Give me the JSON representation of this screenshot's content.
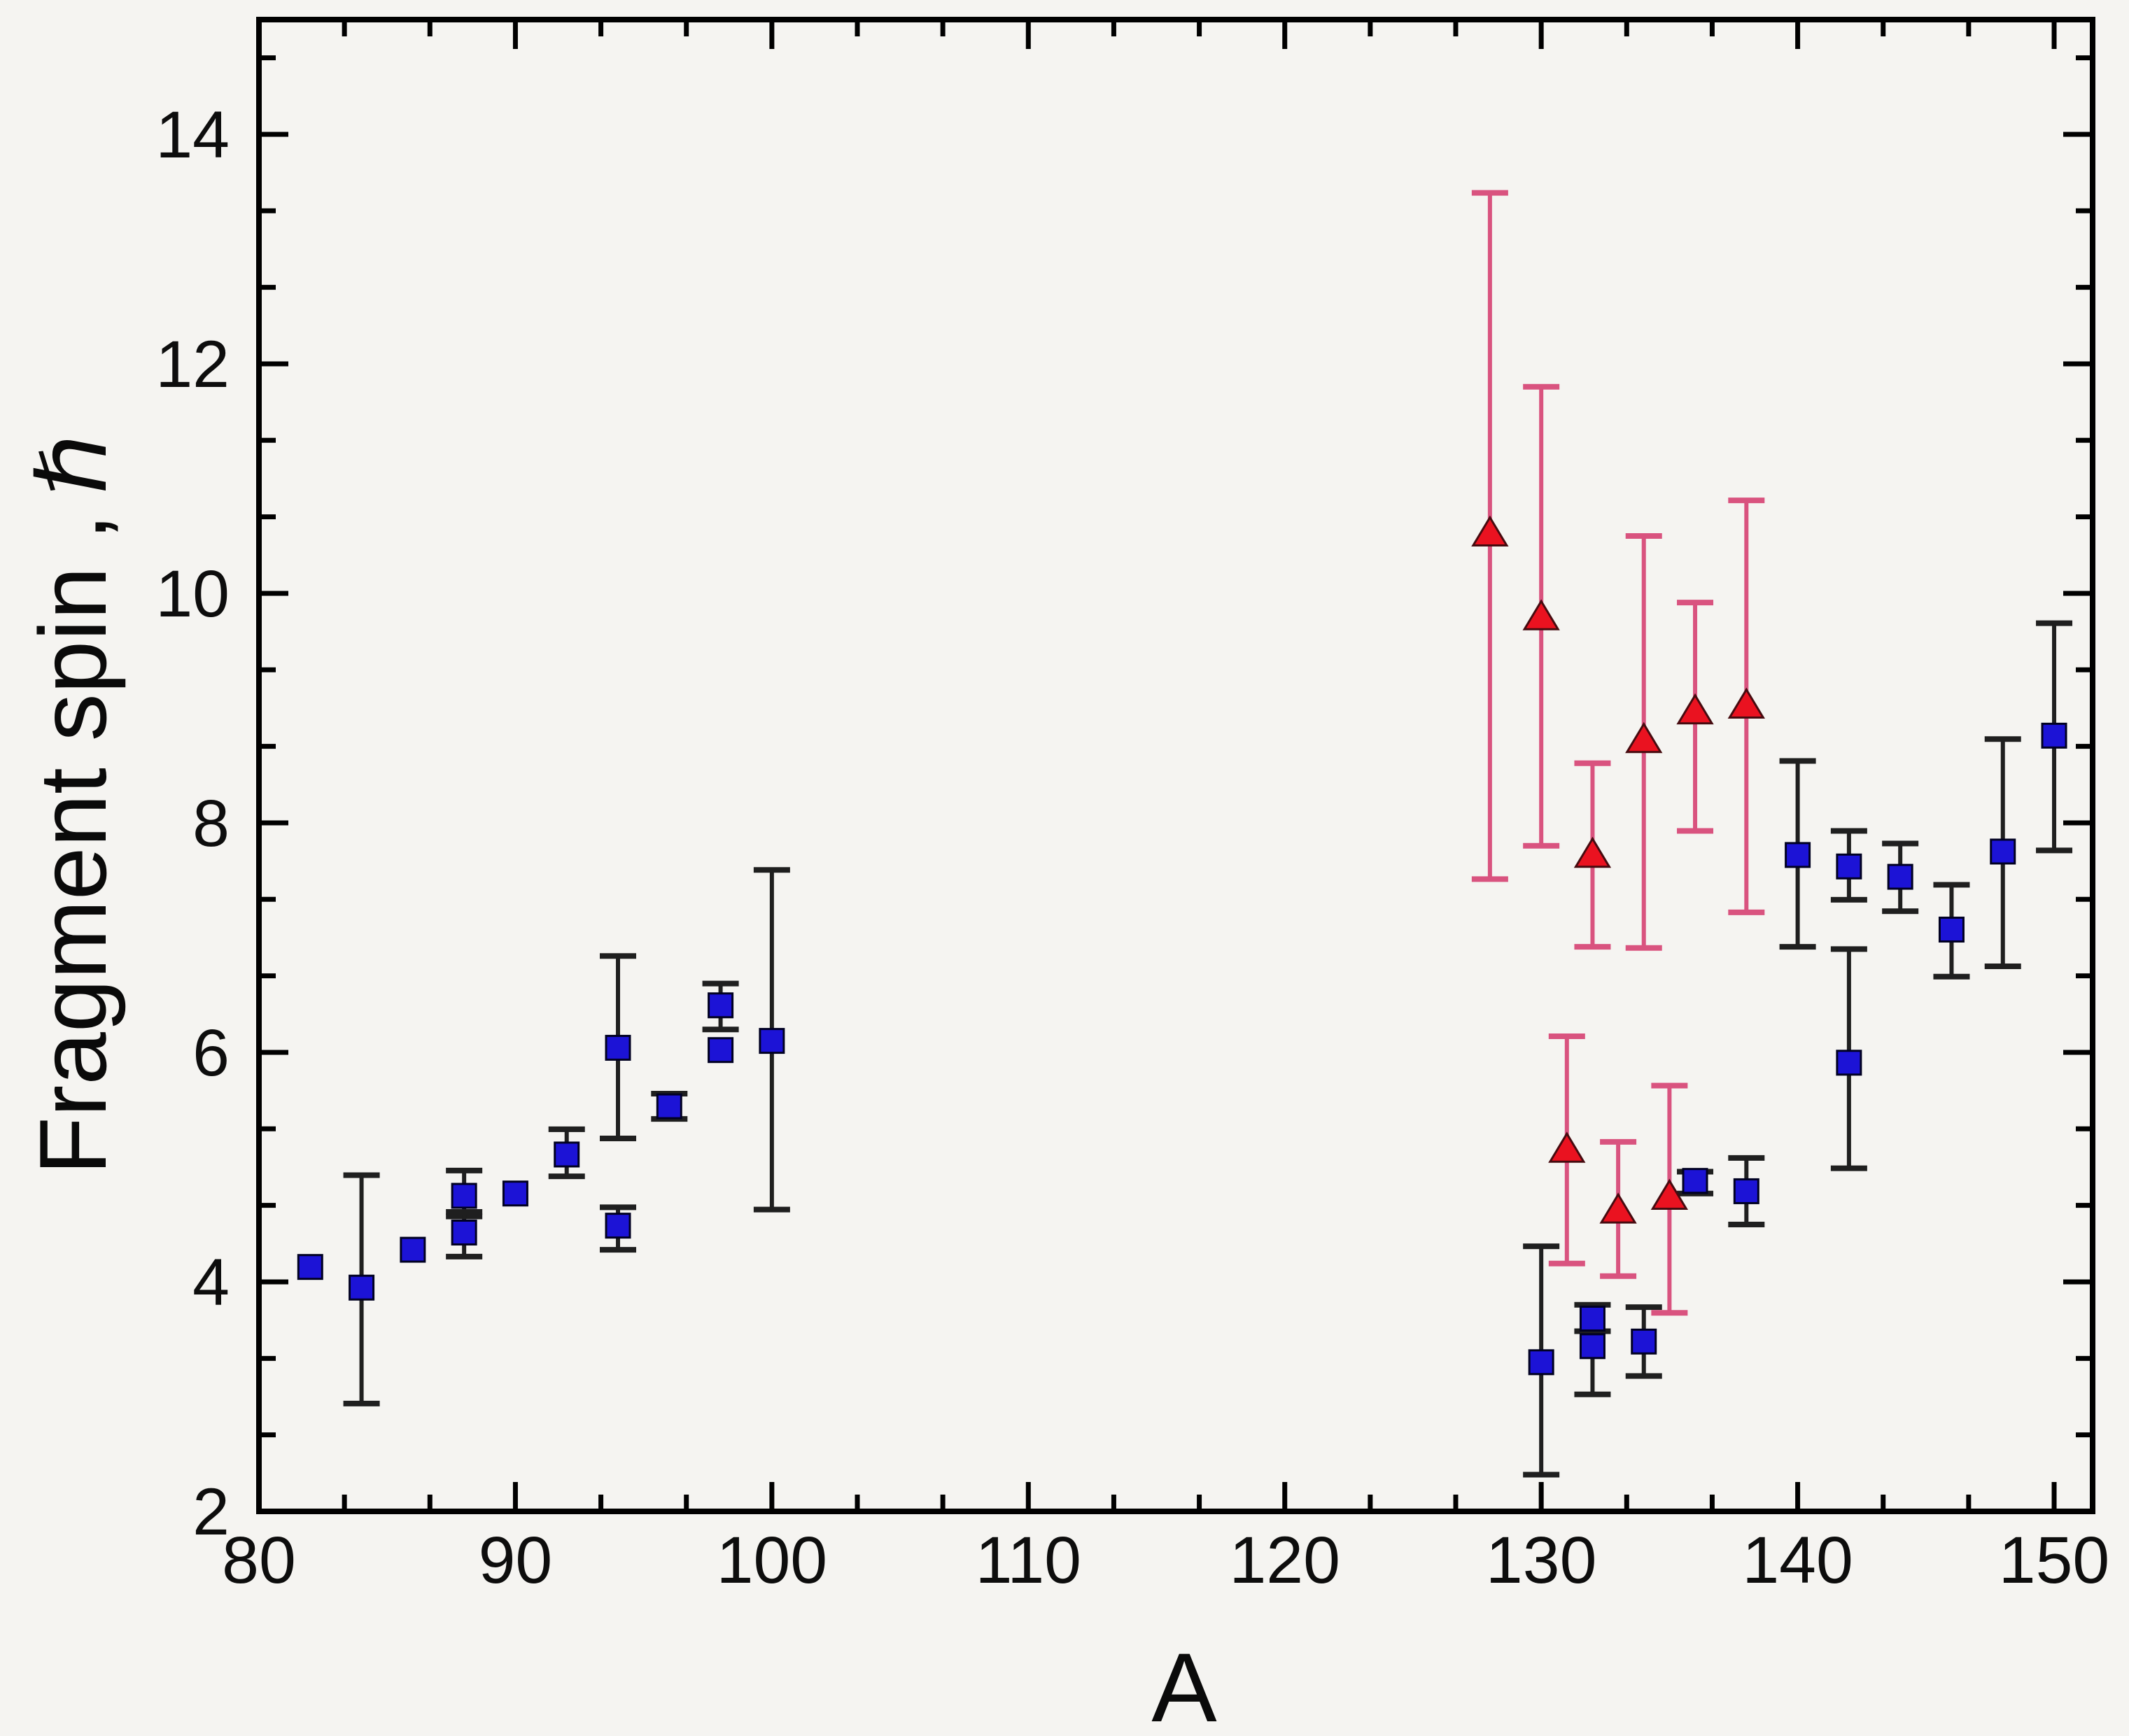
{
  "figure": {
    "background_color": "#f5f4f1",
    "axis_color": "#000000",
    "tick_label_color": "#0d0d0d"
  },
  "chart_data": {
    "type": "scatter",
    "title": "",
    "xlabel": "A",
    "ylabel_main": "Fragment spin ,",
    "ylabel_symbol": "ℏ",
    "ylabel_full": "Fragment spin , ℏ",
    "xlim": [
      80,
      151.5
    ],
    "ylim": [
      2,
      15.0
    ],
    "grid": false,
    "legend": "none",
    "x_major_ticks": [
      80,
      90,
      100,
      110,
      120,
      130,
      140,
      150
    ],
    "x_minor_step": 3.3333,
    "y_major_ticks": [
      2,
      4,
      6,
      8,
      10,
      12,
      14
    ],
    "y_minor_step": 0.6667,
    "series": [
      {
        "name": "blue squares",
        "marker": "square",
        "marker_color": "#1c13d6",
        "marker_edge_color": "#010122",
        "error_bar_color": "#1f1f1f",
        "points": [
          {
            "x": 82,
            "y": 4.13
          },
          {
            "x": 84,
            "y": 3.95,
            "lo": 2.94,
            "hi": 4.93
          },
          {
            "x": 86,
            "y": 4.28
          },
          {
            "x": 88,
            "y": 4.75,
            "lo": 4.57,
            "hi": 4.97
          },
          {
            "x": 88,
            "y": 4.43,
            "lo": 4.22,
            "hi": 4.61
          },
          {
            "x": 90,
            "y": 4.77
          },
          {
            "x": 92,
            "y": 5.11,
            "lo": 4.92,
            "hi": 5.33
          },
          {
            "x": 94,
            "y": 6.04,
            "lo": 5.25,
            "hi": 6.84
          },
          {
            "x": 94,
            "y": 4.49,
            "lo": 4.28,
            "hi": 4.65
          },
          {
            "x": 96,
            "y": 5.53,
            "lo": 5.42,
            "hi": 5.64
          },
          {
            "x": 98,
            "y": 6.41,
            "lo": 6.2,
            "hi": 6.6
          },
          {
            "x": 98,
            "y": 6.02
          },
          {
            "x": 100,
            "y": 6.1,
            "lo": 4.63,
            "hi": 7.59
          },
          {
            "x": 130,
            "y": 3.3,
            "lo": 2.32,
            "hi": 4.31
          },
          {
            "x": 132,
            "y": 3.68,
            "lo": 3.57,
            "hi": 3.8
          },
          {
            "x": 132,
            "y": 3.44,
            "lo": 3.02,
            "hi": 3.57
          },
          {
            "x": 134,
            "y": 3.48,
            "lo": 3.18,
            "hi": 3.78
          },
          {
            "x": 136,
            "y": 4.88,
            "lo": 4.77,
            "hi": 4.96
          },
          {
            "x": 138,
            "y": 4.79,
            "lo": 4.5,
            "hi": 5.08
          },
          {
            "x": 140,
            "y": 7.72,
            "lo": 6.92,
            "hi": 8.54
          },
          {
            "x": 142,
            "y": 7.62,
            "lo": 7.33,
            "hi": 7.93
          },
          {
            "x": 142,
            "y": 5.91,
            "lo": 4.99,
            "hi": 6.9
          },
          {
            "x": 144,
            "y": 7.53,
            "lo": 7.23,
            "hi": 7.82
          },
          {
            "x": 146,
            "y": 7.07,
            "lo": 6.66,
            "hi": 7.46
          },
          {
            "x": 148,
            "y": 7.75,
            "lo": 6.75,
            "hi": 8.73
          },
          {
            "x": 150,
            "y": 8.76,
            "lo": 7.76,
            "hi": 9.74
          }
        ]
      },
      {
        "name": "red triangles",
        "marker": "triangle",
        "marker_color": "#ea1220",
        "marker_edge_color": "#460b10",
        "error_bar_color": "#d9537f",
        "points": [
          {
            "x": 128,
            "y": 10.52,
            "lo": 7.51,
            "hi": 13.49
          },
          {
            "x": 130,
            "y": 9.79,
            "lo": 7.8,
            "hi": 11.8
          },
          {
            "x": 132,
            "y": 7.72,
            "lo": 6.92,
            "hi": 8.52
          },
          {
            "x": 134,
            "y": 8.72,
            "lo": 6.91,
            "hi": 10.5
          },
          {
            "x": 136,
            "y": 8.97,
            "lo": 7.93,
            "hi": 9.92
          },
          {
            "x": 138,
            "y": 9.02,
            "lo": 7.22,
            "hi": 10.81
          },
          {
            "x": 131,
            "y": 5.15,
            "lo": 4.16,
            "hi": 6.14
          },
          {
            "x": 133,
            "y": 4.62,
            "lo": 4.05,
            "hi": 5.22
          },
          {
            "x": 135,
            "y": 4.74,
            "lo": 3.73,
            "hi": 5.71
          }
        ]
      }
    ]
  }
}
